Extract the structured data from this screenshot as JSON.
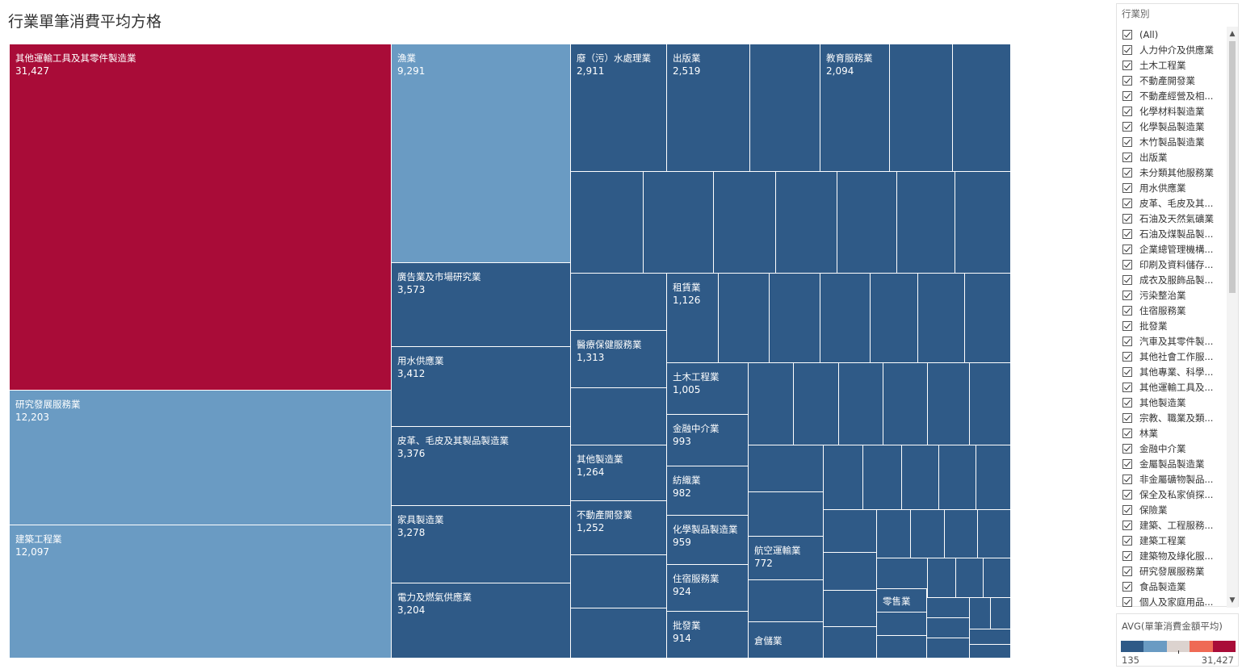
{
  "title": "行業單筆消費平均方格",
  "colors": {
    "dark": "#2f5a87",
    "light": "#6a9bc3",
    "highlight": "#a90c38"
  },
  "chart_data": {
    "type": "treemap",
    "measure": "AVG(單筆消費金額平均)",
    "color_range": [
      135,
      31427
    ],
    "items": [
      {
        "name": "其他運輸工具及其零件製造業",
        "value": 31427
      },
      {
        "name": "研究發展服務業",
        "value": 12203
      },
      {
        "name": "建築工程業",
        "value": 12097
      },
      {
        "name": "漁業",
        "value": 9291
      },
      {
        "name": "廣告業及市場研究業",
        "value": 3573
      },
      {
        "name": "用水供應業",
        "value": 3412
      },
      {
        "name": "皮革、毛皮及其製品製造業",
        "value": 3376
      },
      {
        "name": "家具製造業",
        "value": 3278
      },
      {
        "name": "電力及燃氣供應業",
        "value": 3204
      },
      {
        "name": "廢（污）水處理業",
        "value": 2911
      },
      {
        "name": "出版業",
        "value": 2519
      },
      {
        "name": "教育服務業",
        "value": 2094
      },
      {
        "name": "醫療保健服務業",
        "value": 1313
      },
      {
        "name": "其他製造業",
        "value": 1264
      },
      {
        "name": "不動產開發業",
        "value": 1252
      },
      {
        "name": "租賃業",
        "value": 1126
      },
      {
        "name": "土木工程業",
        "value": 1005
      },
      {
        "name": "金融中介業",
        "value": 993
      },
      {
        "name": "紡織業",
        "value": 982
      },
      {
        "name": "化學製品製造業",
        "value": 959
      },
      {
        "name": "住宿服務業",
        "value": 924
      },
      {
        "name": "批發業",
        "value": 914
      },
      {
        "name": "航空運輸業",
        "value": 772
      },
      {
        "name": "倉儲業",
        "value": null
      },
      {
        "name": "零售業",
        "value": null
      }
    ]
  },
  "filter": {
    "title": "行業別",
    "items": [
      "(All)",
      "人力仲介及供應業",
      "土木工程業",
      "不動產開發業",
      "不動產經營及相...",
      "化學材料製造業",
      "化學製品製造業",
      "木竹製品製造業",
      "出版業",
      "未分類其他服務業",
      "用水供應業",
      "皮革、毛皮及其...",
      "石油及天然氣礦業",
      "石油及煤製品製...",
      "企業總管理機構...",
      "印刷及資料儲存...",
      "成衣及服飾品製...",
      "污染整治業",
      "住宿服務業",
      "批發業",
      "汽車及其零件製...",
      "其他社會工作服...",
      "其他專業、科學...",
      "其他運輸工具及...",
      "其他製造業",
      "宗教、職業及類...",
      "林業",
      "金融中介業",
      "金屬製品製造業",
      "非金屬礦物製品...",
      "保全及私家偵探...",
      "保險業",
      "建築、工程服務...",
      "建築工程業",
      "建築物及綠化服...",
      "研究發展服務業",
      "食品製造業",
      "個人及家庭用品..."
    ]
  },
  "legend": {
    "title": "AVG(單筆消費金額平均)",
    "min": "135",
    "max": "31,427",
    "colors": [
      "#2f5a87",
      "#6a9bc3",
      "#dcd3cf",
      "#ef6a55",
      "#a90c38"
    ]
  }
}
